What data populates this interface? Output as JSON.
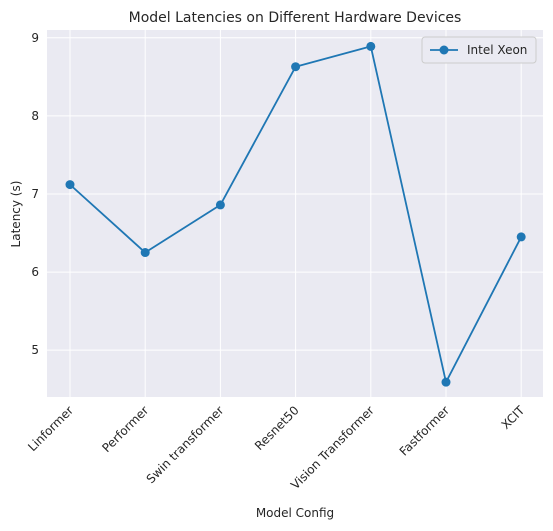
{
  "chart_data": {
    "type": "line",
    "title": "Model Latencies on Different Hardware Devices",
    "xlabel": "Model Config",
    "ylabel": "Latency (s)",
    "categories": [
      "Linformer",
      "Performer",
      "Swin transformer",
      "Resnet50",
      "Vision Transformer",
      "Fastformer",
      "XCIT"
    ],
    "series": [
      {
        "name": "Intel Xeon",
        "values": [
          7.12,
          6.25,
          6.86,
          8.63,
          8.89,
          4.59,
          6.45
        ],
        "color": "#1f77b4"
      }
    ],
    "ylim": [
      4.4,
      9.1
    ],
    "yticks": [
      5,
      6,
      7,
      8,
      9
    ],
    "grid": true,
    "legend_position": "top-right",
    "background": "#eaeaf2"
  }
}
